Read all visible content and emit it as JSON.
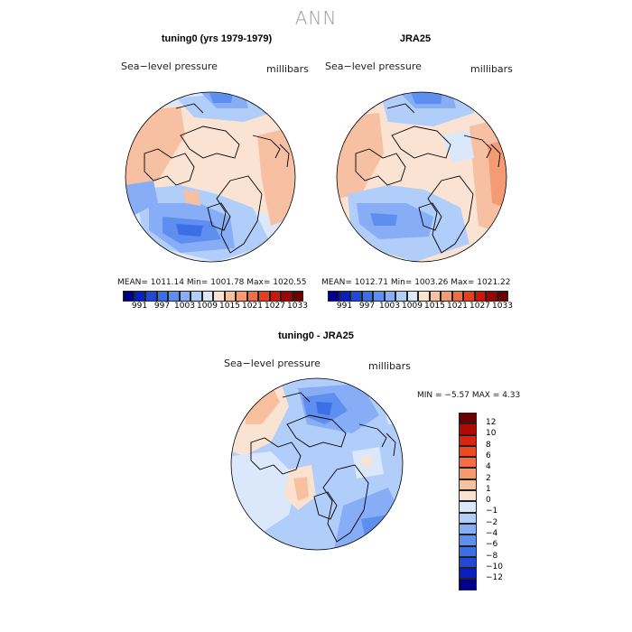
{
  "figure": {
    "title": "ANN"
  },
  "panels": [
    {
      "title": "tuning0 (yrs 1979-1979)",
      "field_label": "Sea−level pressure",
      "units": "millibars",
      "stats": "MEAN= 1011.14   Min= 1001.78   Max= 1020.55"
    },
    {
      "title": "JRA25",
      "field_label": "Sea−level pressure",
      "units": "millibars",
      "stats": "MEAN= 1012.71   Min= 1003.26   Max= 1021.22"
    },
    {
      "title": "tuning0 - JRA25",
      "field_label": "Sea−level pressure",
      "units": "millibars",
      "stats": "MIN =   −5.57 MAX =    4.33"
    }
  ],
  "abs_colorbar": {
    "colors": [
      "#00008b",
      "#0a1fbf",
      "#2149d6",
      "#3c6fe6",
      "#5e8eef",
      "#86adf5",
      "#b1cdf9",
      "#dbe8fb",
      "#fbe3d4",
      "#f8c0a3",
      "#f49b73",
      "#ee6f45",
      "#e0421f",
      "#c51a0c",
      "#9a0505",
      "#6b0000"
    ],
    "labels": [
      "991",
      "997",
      "1003",
      "1009",
      "1015",
      "1021",
      "1027",
      "1033"
    ]
  },
  "diff_colorbar": {
    "colors": [
      "#6b0000",
      "#b00a06",
      "#d9240e",
      "#ee4a22",
      "#f46e45",
      "#f7996f",
      "#f9c0a0",
      "#fbe1d0",
      "#dbe8fb",
      "#b1cdf9",
      "#86adf5",
      "#5e8eef",
      "#3c6fe6",
      "#2149d6",
      "#0a1fbf",
      "#00008b"
    ],
    "labels": [
      "12",
      "10",
      "8",
      "6",
      "4",
      "2",
      "1",
      "0",
      "−1",
      "−2",
      "−4",
      "−6",
      "−8",
      "−10",
      "−12"
    ]
  }
}
